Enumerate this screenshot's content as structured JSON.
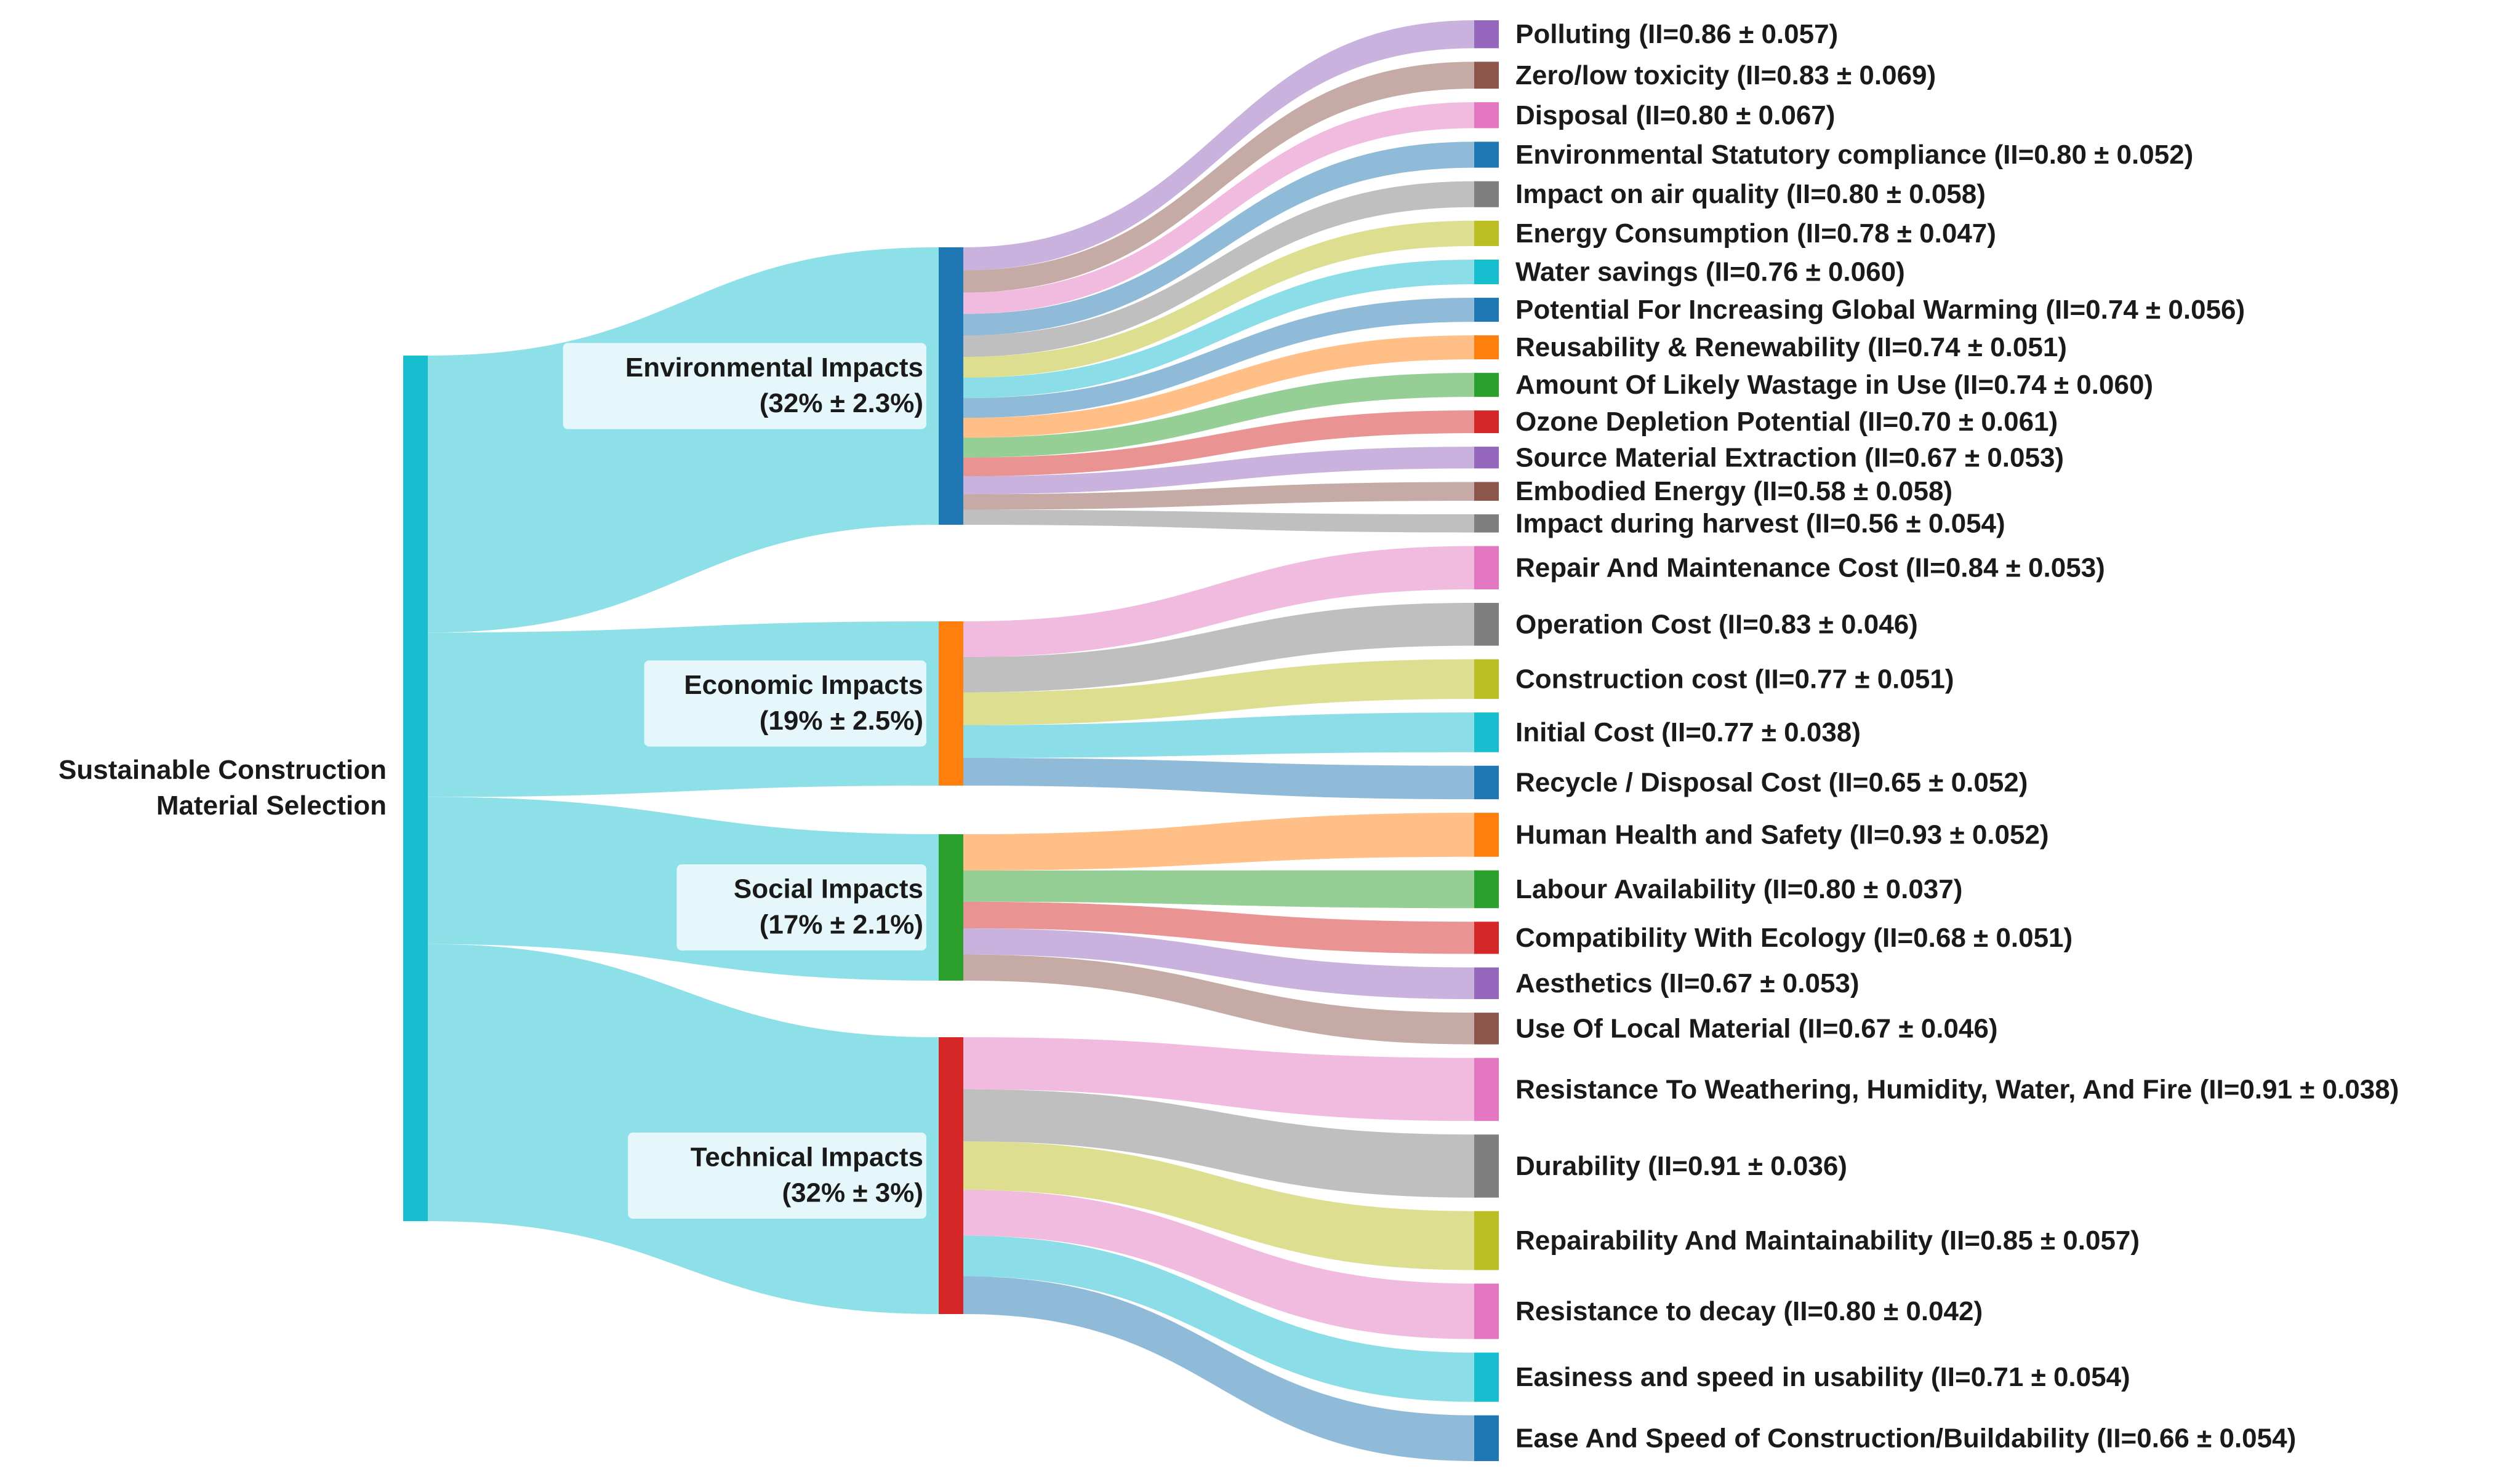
{
  "chart_data": {
    "type": "sankey",
    "title": "",
    "root": {
      "label_lines": [
        "Sustainable Construction",
        "Material Selection"
      ],
      "color": "#17becf"
    },
    "link_color": "#8ddfe8",
    "categories": [
      {
        "id": "environmental",
        "name": "Environmental Impacts",
        "share": "(32% ± 2.3%)",
        "weight": 32,
        "color": "#1f77b4",
        "criteria": [
          {
            "label": "Polluting (II=0.86 ± 0.057)",
            "ii": 0.86,
            "color": "#9467bd"
          },
          {
            "label": "Zero/low toxicity (II=0.83 ± 0.069)",
            "ii": 0.83,
            "color": "#8c564b"
          },
          {
            "label": "Disposal (II=0.80 ± 0.067)",
            "ii": 0.8,
            "color": "#e377c2"
          },
          {
            "label": "Environmental Statutory compliance (II=0.80 ± 0.052)",
            "ii": 0.8,
            "color": "#1f77b4"
          },
          {
            "label": "Impact on air quality (II=0.80 ± 0.058)",
            "ii": 0.8,
            "color": "#7f7f7f"
          },
          {
            "label": "Energy Consumption (II=0.78 ± 0.047)",
            "ii": 0.78,
            "color": "#bcbd22"
          },
          {
            "label": "Water savings (II=0.76 ± 0.060)",
            "ii": 0.76,
            "color": "#17becf"
          },
          {
            "label": "Potential For Increasing Global Warming (II=0.74 ± 0.056)",
            "ii": 0.74,
            "color": "#1f77b4"
          },
          {
            "label": "Reusability & Renewability (II=0.74 ± 0.051)",
            "ii": 0.74,
            "color": "#ff7f0e"
          },
          {
            "label": "Amount Of Likely Wastage in Use (II=0.74 ± 0.060)",
            "ii": 0.74,
            "color": "#2ca02c"
          },
          {
            "label": "Ozone Depletion Potential (II=0.70 ± 0.061)",
            "ii": 0.7,
            "color": "#d62728"
          },
          {
            "label": "Source Material Extraction (II=0.67 ± 0.053)",
            "ii": 0.67,
            "color": "#9467bd"
          },
          {
            "label": "Embodied Energy (II=0.58 ± 0.058)",
            "ii": 0.58,
            "color": "#8c564b"
          },
          {
            "label": "Impact during harvest (II=0.56 ± 0.054)",
            "ii": 0.56,
            "color": "#7f7f7f"
          }
        ]
      },
      {
        "id": "economic",
        "name": "Economic Impacts",
        "share": "(19% ± 2.5%)",
        "weight": 19,
        "color": "#ff7f0e",
        "criteria": [
          {
            "label": "Repair And Maintenance Cost (II=0.84 ± 0.053)",
            "ii": 0.84,
            "color": "#e377c2"
          },
          {
            "label": "Operation Cost (II=0.83 ± 0.046)",
            "ii": 0.83,
            "color": "#7f7f7f"
          },
          {
            "label": "Construction cost (II=0.77 ± 0.051)",
            "ii": 0.77,
            "color": "#bcbd22"
          },
          {
            "label": "Initial Cost (II=0.77 ± 0.038)",
            "ii": 0.77,
            "color": "#17becf"
          },
          {
            "label": "Recycle / Disposal Cost (II=0.65 ± 0.052)",
            "ii": 0.65,
            "color": "#1f77b4"
          }
        ]
      },
      {
        "id": "social",
        "name": "Social Impacts",
        "share": "(17% ± 2.1%)",
        "weight": 17,
        "color": "#2ca02c",
        "criteria": [
          {
            "label": "Human Health and Safety (II=0.93 ± 0.052)",
            "ii": 0.93,
            "color": "#ff7f0e"
          },
          {
            "label": "Labour Availability (II=0.80 ± 0.037)",
            "ii": 0.8,
            "color": "#2ca02c"
          },
          {
            "label": "Compatibility With Ecology (II=0.68 ± 0.051)",
            "ii": 0.68,
            "color": "#d62728"
          },
          {
            "label": "Aesthetics (II=0.67 ± 0.053)",
            "ii": 0.67,
            "color": "#9467bd"
          },
          {
            "label": "Use Of Local Material (II=0.67 ± 0.046)",
            "ii": 0.67,
            "color": "#8c564b"
          }
        ]
      },
      {
        "id": "technical",
        "name": "Technical Impacts",
        "share": "(32% ± 3%)",
        "weight": 32,
        "color": "#d62728",
        "criteria": [
          {
            "label": "Resistance To Weathering, Humidity, Water, And Fire (II=0.91 ± 0.038)",
            "ii": 0.91,
            "color": "#e377c2"
          },
          {
            "label": "Durability (II=0.91 ± 0.036)",
            "ii": 0.91,
            "color": "#7f7f7f"
          },
          {
            "label": "Repairability And Maintainability (II=0.85 ± 0.057)",
            "ii": 0.85,
            "color": "#bcbd22"
          },
          {
            "label": "Resistance to decay (II=0.80 ± 0.042)",
            "ii": 0.8,
            "color": "#e377c2"
          },
          {
            "label": "Easiness and speed in usability (II=0.71 ± 0.054)",
            "ii": 0.71,
            "color": "#17becf"
          },
          {
            "label": "Ease And Speed of Construction/Buildability (II=0.66 ± 0.054)",
            "ii": 0.66,
            "color": "#1f77b4"
          }
        ]
      }
    ]
  }
}
